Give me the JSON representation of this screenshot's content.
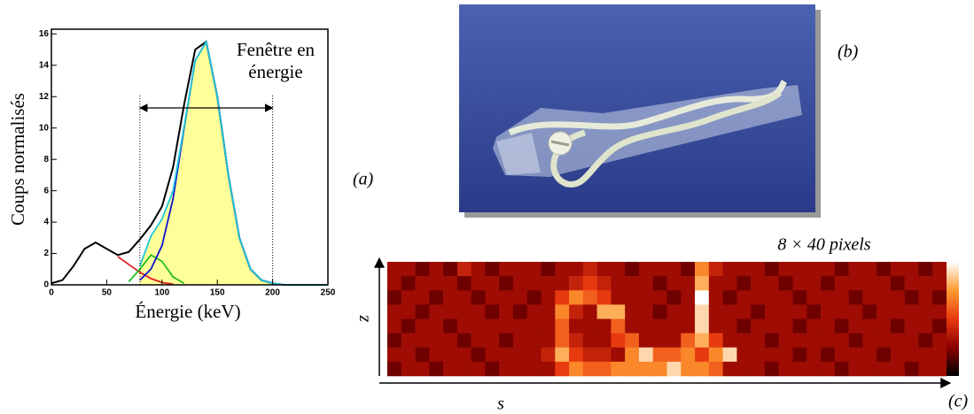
{
  "chart_data": [
    {
      "type": "line",
      "label": "(a)",
      "xlabel": "Énergie (keV)",
      "ylabel": "Coups normalisés",
      "annotation": "Fenêtre en énergie",
      "x": [
        0,
        10,
        20,
        30,
        40,
        50,
        60,
        70,
        80,
        90,
        100,
        110,
        120,
        130,
        140,
        150,
        160,
        170,
        180,
        190,
        200,
        210,
        220,
        230,
        240,
        250
      ],
      "series": [
        {
          "color": "#000000",
          "values": [
            0.1,
            0.3,
            1.2,
            2.3,
            2.7,
            2.3,
            1.9,
            2.1,
            2.9,
            3.8,
            5.0,
            7.5,
            11.5,
            15.0,
            15.5,
            12.0,
            7.0,
            3.0,
            1.0,
            0.3,
            0.1,
            0,
            0,
            0,
            0,
            0
          ]
        },
        {
          "color": "#e02020",
          "values": [
            null,
            null,
            null,
            null,
            null,
            null,
            1.8,
            1.3,
            0.8,
            0.4,
            0.15,
            0.05,
            null,
            null,
            null,
            null,
            null,
            null,
            null,
            null,
            null,
            null,
            null,
            null,
            null,
            null
          ]
        },
        {
          "color": "#20c020",
          "values": [
            null,
            null,
            null,
            null,
            null,
            null,
            null,
            0.2,
            1.0,
            1.9,
            1.5,
            0.5,
            0.1,
            null,
            null,
            null,
            null,
            null,
            null,
            null,
            null,
            null,
            null,
            null,
            null,
            null
          ]
        },
        {
          "color": "#1010d0",
          "values": [
            null,
            null,
            null,
            null,
            null,
            null,
            null,
            null,
            0.3,
            1.0,
            2.5,
            5.5,
            10.0,
            14.3,
            15.5,
            12.0,
            7.0,
            3.0,
            1.0,
            0.3,
            0.1,
            null,
            null,
            null,
            null,
            null
          ]
        },
        {
          "color": "#20c8d8",
          "values": [
            null,
            null,
            null,
            null,
            null,
            null,
            null,
            null,
            1.2,
            3.1,
            4.2,
            6.0,
            10.1,
            14.3,
            15.5,
            12.0,
            7.0,
            3.0,
            1.0,
            0.3,
            0.1,
            0,
            0,
            0,
            0,
            0
          ]
        }
      ],
      "fill_color": "#ffff99",
      "window": [
        80,
        200
      ],
      "xlim": [
        0,
        250
      ],
      "xticks": [
        0,
        50,
        100,
        150,
        200,
        250
      ],
      "ylim": [
        0,
        16.3
      ],
      "yticks": [
        0,
        2,
        4,
        6,
        8,
        10,
        12,
        14,
        16
      ]
    },
    {
      "type": "heatmap",
      "title": "8 × 40 pixels",
      "xlabel": "s",
      "ylabel": "z",
      "label": "(c)",
      "colors": [
        "#000000",
        "#8b0000",
        "#e83a10",
        "#ff9a30",
        "#ffffff"
      ],
      "vlim": [
        0,
        10
      ],
      "values": [
        [
          3,
          3,
          2,
          3,
          2,
          4,
          3,
          2,
          3,
          3,
          3,
          2,
          3,
          3,
          4,
          3,
          3,
          2,
          3,
          3,
          3,
          2,
          7,
          4,
          3,
          3,
          3,
          2,
          3,
          3,
          3,
          3,
          2,
          3,
          3,
          2,
          3,
          3,
          2,
          3
        ],
        [
          3,
          2,
          3,
          3,
          3,
          2,
          3,
          3,
          2,
          3,
          3,
          3,
          3,
          4,
          5,
          4,
          3,
          3,
          3,
          2,
          3,
          3,
          8,
          3,
          3,
          2,
          3,
          3,
          2,
          3,
          3,
          2,
          3,
          3,
          3,
          3,
          2,
          3,
          3,
          3
        ],
        [
          2,
          3,
          3,
          2,
          3,
          3,
          2,
          3,
          3,
          3,
          2,
          3,
          5,
          7,
          6,
          5,
          3,
          3,
          3,
          3,
          2,
          3,
          10,
          3,
          2,
          3,
          3,
          3,
          3,
          2,
          3,
          3,
          3,
          2,
          3,
          3,
          3,
          2,
          3,
          2
        ],
        [
          3,
          3,
          2,
          3,
          3,
          3,
          3,
          2,
          3,
          2,
          3,
          3,
          7,
          4,
          3,
          8,
          8,
          3,
          3,
          2,
          3,
          3,
          9,
          3,
          3,
          3,
          2,
          3,
          3,
          3,
          2,
          3,
          3,
          3,
          2,
          3,
          3,
          3,
          3,
          3
        ],
        [
          3,
          2,
          3,
          3,
          2,
          3,
          3,
          3,
          3,
          3,
          3,
          3,
          6,
          3,
          3,
          3,
          6,
          3,
          3,
          3,
          3,
          3,
          9,
          3,
          3,
          2,
          3,
          3,
          3,
          2,
          3,
          3,
          2,
          3,
          3,
          3,
          2,
          3,
          3,
          2
        ],
        [
          2,
          3,
          3,
          3,
          3,
          2,
          3,
          3,
          2,
          3,
          3,
          3,
          6,
          4,
          3,
          3,
          5,
          6,
          3,
          3,
          3,
          6,
          8,
          5,
          3,
          3,
          3,
          2,
          3,
          3,
          3,
          3,
          3,
          2,
          3,
          3,
          3,
          3,
          2,
          3
        ],
        [
          3,
          3,
          2,
          3,
          3,
          3,
          2,
          3,
          3,
          3,
          3,
          4,
          8,
          5,
          4,
          4,
          3,
          7,
          9,
          6,
          6,
          7,
          5,
          7,
          9,
          3,
          3,
          3,
          3,
          2,
          3,
          2,
          3,
          3,
          3,
          2,
          3,
          3,
          3,
          3
        ],
        [
          2,
          3,
          3,
          2,
          3,
          3,
          3,
          2,
          3,
          3,
          3,
          3,
          5,
          7,
          6,
          6,
          7,
          7,
          7,
          7,
          9,
          7,
          7,
          6,
          3,
          3,
          3,
          2,
          3,
          3,
          3,
          3,
          2,
          3,
          3,
          3,
          3,
          2,
          3,
          3
        ]
      ]
    }
  ],
  "photo": {
    "label": "(b)"
  }
}
